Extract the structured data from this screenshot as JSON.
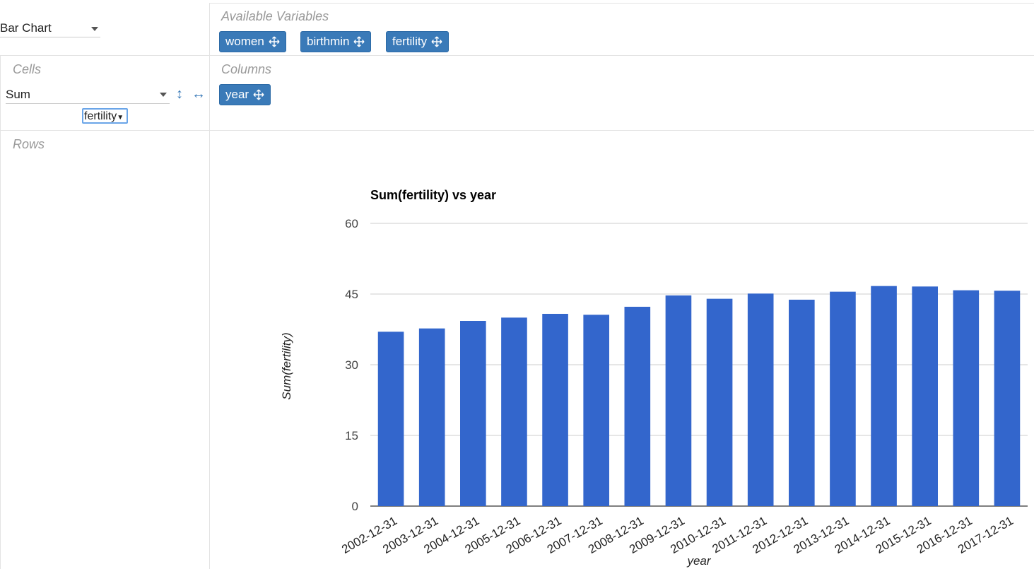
{
  "renderer": {
    "selected": "Bar Chart"
  },
  "available_variables": {
    "title": "Available Variables",
    "chips": [
      "women",
      "birthmin",
      "fertility"
    ]
  },
  "cells": {
    "title": "Cells",
    "aggregator": "Sum",
    "field": "fertility"
  },
  "columns": {
    "title": "Columns",
    "chips": [
      "year"
    ]
  },
  "rows": {
    "title": "Rows"
  },
  "colors": {
    "bar": "#3366cc",
    "grid": "#cccccc",
    "chip": "#3a7ab8"
  },
  "chart_data": {
    "type": "bar",
    "title": "Sum(fertility) vs year",
    "xlabel": "year",
    "ylabel": "Sum(fertility)",
    "ylim": [
      0,
      60
    ],
    "yticks": [
      0,
      15,
      30,
      45,
      60
    ],
    "grid": true,
    "categories": [
      "2002-12-31",
      "2003-12-31",
      "2004-12-31",
      "2005-12-31",
      "2006-12-31",
      "2007-12-31",
      "2008-12-31",
      "2009-12-31",
      "2010-12-31",
      "2011-12-31",
      "2012-12-31",
      "2013-12-31",
      "2014-12-31",
      "2015-12-31",
      "2016-12-31",
      "2017-12-31"
    ],
    "values": [
      37.0,
      37.7,
      39.3,
      40.0,
      40.8,
      40.6,
      42.3,
      44.7,
      44.0,
      45.1,
      43.8,
      45.5,
      46.7,
      46.6,
      45.8,
      45.7
    ]
  }
}
